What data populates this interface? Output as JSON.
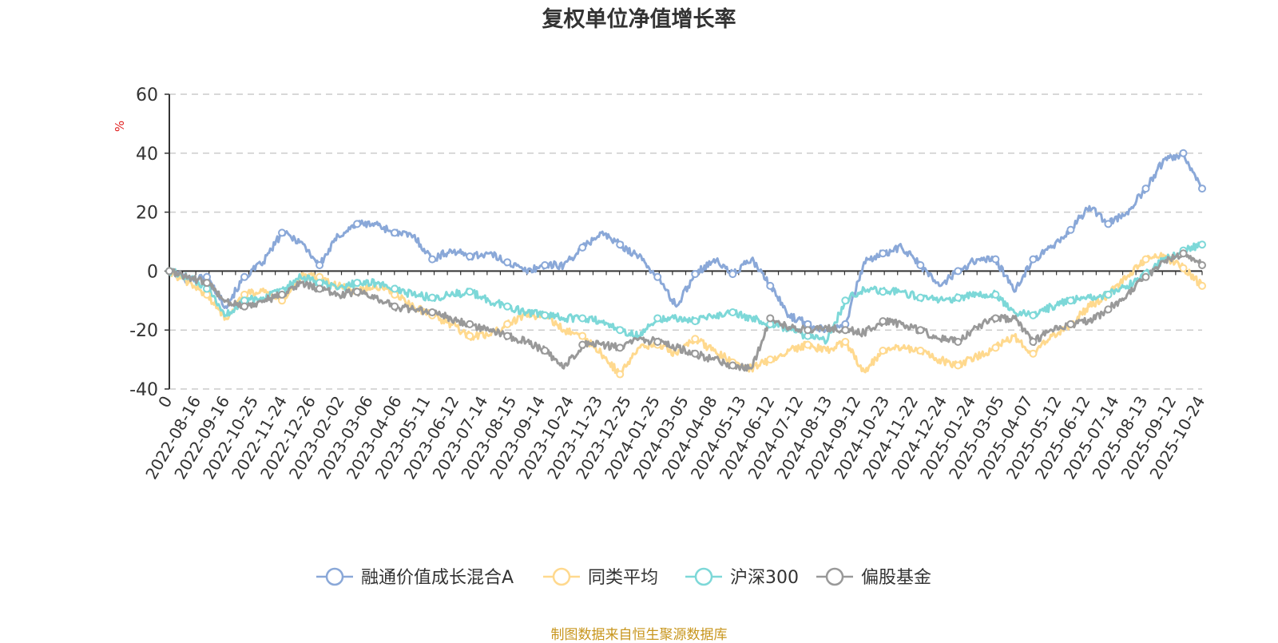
{
  "chart_data": {
    "type": "line",
    "title": "复权单位净值增长率",
    "source": "制图数据来自恒生聚源数据库",
    "ylabel": "%",
    "xlabel": "",
    "ylim": [
      -40,
      60
    ],
    "yticks": [
      -40,
      -20,
      0,
      20,
      40,
      60
    ],
    "grid": true,
    "legend_position": "bottom",
    "x_tick_labels": [
      "0",
      "2022-08-16",
      "2022-09-16",
      "2022-10-25",
      "2022-11-24",
      "2022-12-26",
      "2023-02-02",
      "2023-03-06",
      "2023-04-06",
      "2023-05-11",
      "2023-06-12",
      "2023-07-14",
      "2023-08-15",
      "2023-09-14",
      "2023-10-24",
      "2023-11-23",
      "2023-12-25",
      "2024-01-25",
      "2024-03-05",
      "2024-04-08",
      "2024-05-13",
      "2024-06-12",
      "2024-07-12",
      "2024-08-13",
      "2024-09-12",
      "2024-10-23",
      "2024-11-22",
      "2024-12-24",
      "2025-01-24",
      "2025-03-05",
      "2025-04-07",
      "2025-05-12",
      "2025-06-12",
      "2025-07-14",
      "2025-08-13",
      "2025-09-12",
      "2025-10-24"
    ],
    "colors": {
      "fund": "#8aa8d8",
      "peer_avg": "#ffd98e",
      "hs300": "#7dd8d8",
      "equity_fund": "#999999",
      "axis": "#333333",
      "grid": "#cccccc",
      "ylabel": "#e02020"
    },
    "series": [
      {
        "name": "融通价值成长混合A",
        "key": "fund",
        "values": [
          0,
          -3,
          -2,
          -12,
          -2,
          3,
          13,
          10,
          2,
          12,
          16,
          16,
          13,
          12,
          4,
          7,
          5,
          6,
          3,
          0,
          2,
          2,
          8,
          13,
          9,
          5,
          -2,
          -12,
          -1,
          4,
          -1,
          4,
          -5,
          -15,
          -18,
          -20,
          -18,
          3,
          6,
          8,
          2,
          -5,
          0,
          4,
          4,
          -7,
          4,
          8,
          14,
          22,
          16,
          20,
          28,
          38,
          40,
          28
        ]
      },
      {
        "name": "同类平均",
        "key": "peer_avg",
        "values": [
          0,
          -4,
          -8,
          -16,
          -8,
          -6,
          -10,
          -2,
          -2,
          -5,
          -7,
          -5,
          -8,
          -12,
          -15,
          -18,
          -22,
          -22,
          -18,
          -15,
          -15,
          -20,
          -22,
          -28,
          -35,
          -26,
          -25,
          -28,
          -23,
          -27,
          -31,
          -33,
          -30,
          -27,
          -25,
          -27,
          -24,
          -34,
          -27,
          -26,
          -27,
          -30,
          -32,
          -29,
          -26,
          -22,
          -28,
          -22,
          -18,
          -12,
          -8,
          -2,
          4,
          5,
          1,
          -5
        ]
      },
      {
        "name": "沪深300",
        "key": "hs300",
        "values": [
          0,
          -2,
          -6,
          -15,
          -10,
          -9,
          -7,
          -2,
          -4,
          -6,
          -4,
          -4,
          -6,
          -8,
          -9,
          -8,
          -7,
          -10,
          -12,
          -14,
          -15,
          -16,
          -16,
          -17,
          -20,
          -22,
          -16,
          -16,
          -17,
          -15,
          -14,
          -16,
          -18,
          -20,
          -22,
          -24,
          -10,
          -6,
          -7,
          -7,
          -9,
          -10,
          -9,
          -8,
          -8,
          -14,
          -15,
          -12,
          -10,
          -9,
          -8,
          -5,
          -1,
          4,
          7,
          9
        ]
      },
      {
        "name": "偏股基金",
        "key": "equity_fund",
        "values": [
          0,
          -2,
          -4,
          -10,
          -12,
          -10,
          -8,
          -4,
          -6,
          -8,
          -7,
          -9,
          -12,
          -13,
          -14,
          -16,
          -18,
          -20,
          -22,
          -24,
          -27,
          -33,
          -25,
          -25,
          -26,
          -23,
          -24,
          -26,
          -28,
          -30,
          -32,
          -33,
          -16,
          -19,
          -20,
          -19,
          -20,
          -21,
          -17,
          -18,
          -20,
          -23,
          -24,
          -19,
          -16,
          -16,
          -24,
          -20,
          -18,
          -17,
          -13,
          -8,
          -2,
          3,
          6,
          2
        ]
      }
    ]
  }
}
